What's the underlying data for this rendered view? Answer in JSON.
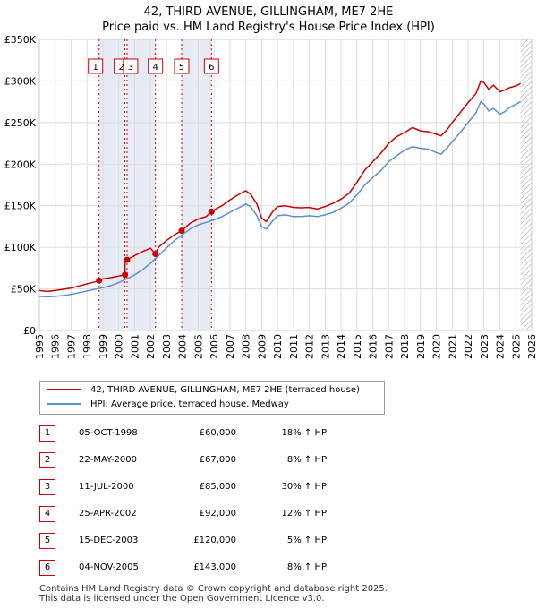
{
  "chart_data": {
    "type": "line",
    "title": "42, THIRD AVENUE, GILLINGHAM, ME7 2HE",
    "subtitle": "Price paid vs. HM Land Registry's House Price Index (HPI)",
    "xlim": [
      1995,
      2026
    ],
    "ylim": [
      0,
      350000
    ],
    "x_ticks": [
      1995,
      1996,
      1997,
      1998,
      1999,
      2000,
      2001,
      2002,
      2003,
      2004,
      2005,
      2006,
      2007,
      2008,
      2009,
      2010,
      2011,
      2012,
      2013,
      2014,
      2015,
      2016,
      2017,
      2018,
      2019,
      2020,
      2021,
      2022,
      2023,
      2024,
      2025,
      2026
    ],
    "y_ticks": [
      {
        "value": 0,
        "label": "£0"
      },
      {
        "value": 50000,
        "label": "£50K"
      },
      {
        "value": 100000,
        "label": "£100K"
      },
      {
        "value": 150000,
        "label": "£150K"
      },
      {
        "value": 200000,
        "label": "£200K"
      },
      {
        "value": 250000,
        "label": "£250K"
      },
      {
        "value": 300000,
        "label": "£300K"
      },
      {
        "value": 350000,
        "label": "£350K"
      }
    ],
    "grid": true,
    "shaded_periods": [
      [
        1998.76,
        2000.39
      ],
      [
        2000.52,
        2002.31
      ],
      [
        2003.96,
        2005.84
      ]
    ],
    "future_hatch_start": 2025.3,
    "series": [
      {
        "name": "42, THIRD AVENUE, GILLINGHAM, ME7 2HE (terraced house)",
        "color": "#cc0000",
        "x": [
          1995.0,
          1995.5,
          1996.0,
          1996.5,
          1997.0,
          1997.5,
          1998.0,
          1998.5,
          1998.76,
          1999.0,
          1999.5,
          2000.0,
          2000.39,
          2000.4,
          2000.52,
          2000.6,
          2001.0,
          2001.5,
          2002.0,
          2002.31,
          2002.5,
          2003.0,
          2003.5,
          2003.96,
          2004.5,
          2005.0,
          2005.5,
          2005.84,
          2006.0,
          2006.5,
          2007.0,
          2007.5,
          2008.0,
          2008.3,
          2008.7,
          2009.0,
          2009.3,
          2009.7,
          2010.0,
          2010.5,
          2011.0,
          2011.5,
          2012.0,
          2012.5,
          2013.0,
          2013.5,
          2014.0,
          2014.5,
          2015.0,
          2015.5,
          2016.0,
          2016.5,
          2017.0,
          2017.5,
          2018.0,
          2018.5,
          2019.0,
          2019.5,
          2020.0,
          2020.3,
          2020.7,
          2021.0,
          2021.5,
          2022.0,
          2022.5,
          2022.8,
          2023.0,
          2023.3,
          2023.6,
          2024.0,
          2024.3,
          2024.6,
          2025.0,
          2025.3
        ],
        "values": [
          48000,
          47000,
          48000,
          49500,
          51000,
          53500,
          56000,
          58500,
          60000,
          62000,
          63500,
          65500,
          67000,
          84000,
          85000,
          86000,
          90000,
          95000,
          99000,
          92000,
          100000,
          108000,
          115000,
          120000,
          129000,
          134000,
          137000,
          143000,
          145000,
          150000,
          157000,
          163000,
          168000,
          164000,
          152000,
          135000,
          131000,
          143000,
          149000,
          150000,
          148000,
          147500,
          148000,
          146000,
          149000,
          153000,
          158000,
          165000,
          178000,
          193000,
          203000,
          213000,
          225000,
          233000,
          238000,
          244000,
          240000,
          239000,
          236000,
          234000,
          242000,
          250000,
          262000,
          274000,
          285000,
          300000,
          298000,
          290000,
          295000,
          287000,
          289000,
          292000,
          294000,
          297000
        ]
      },
      {
        "name": "HPI: Average price, terraced house, Medway",
        "color": "#5b8fd0",
        "x": [
          1995.0,
          1995.5,
          1996.0,
          1996.5,
          1997.0,
          1997.5,
          1998.0,
          1998.5,
          1999.0,
          1999.5,
          2000.0,
          2000.5,
          2001.0,
          2001.5,
          2002.0,
          2002.5,
          2003.0,
          2003.5,
          2004.0,
          2004.5,
          2005.0,
          2005.5,
          2006.0,
          2006.5,
          2007.0,
          2007.5,
          2008.0,
          2008.3,
          2008.7,
          2009.0,
          2009.3,
          2009.7,
          2010.0,
          2010.5,
          2011.0,
          2011.5,
          2012.0,
          2012.5,
          2013.0,
          2013.5,
          2014.0,
          2014.5,
          2015.0,
          2015.5,
          2016.0,
          2016.5,
          2017.0,
          2017.5,
          2018.0,
          2018.5,
          2019.0,
          2019.5,
          2020.0,
          2020.3,
          2020.7,
          2021.0,
          2021.5,
          2022.0,
          2022.5,
          2022.8,
          2023.0,
          2023.3,
          2023.6,
          2024.0,
          2024.3,
          2024.6,
          2025.0,
          2025.3
        ],
        "values": [
          41000,
          40500,
          41000,
          42000,
          43500,
          45500,
          47500,
          49500,
          51500,
          54000,
          57500,
          62000,
          67000,
          73000,
          81000,
          90000,
          99000,
          108000,
          115000,
          122000,
          127000,
          130000,
          133000,
          137000,
          142000,
          147000,
          152000,
          149000,
          138000,
          125000,
          122000,
          132000,
          138000,
          139000,
          137000,
          137000,
          138000,
          137000,
          139000,
          142000,
          147000,
          153000,
          163000,
          175000,
          184000,
          192000,
          203000,
          210000,
          217000,
          221000,
          219000,
          218000,
          214000,
          212000,
          220000,
          227000,
          238000,
          250000,
          262000,
          275000,
          272000,
          264000,
          267000,
          260000,
          263000,
          268000,
          272000,
          275000
        ]
      }
    ],
    "sale_markers": [
      {
        "label": "1",
        "x": 1998.76,
        "value": 60000
      },
      {
        "label": "2",
        "x": 2000.39,
        "value": 67000
      },
      {
        "label": "3",
        "x": 2000.52,
        "value": 85000
      },
      {
        "label": "4",
        "x": 2002.31,
        "value": 92000
      },
      {
        "label": "5",
        "x": 2003.96,
        "value": 120000
      },
      {
        "label": "6",
        "x": 2005.84,
        "value": 143000
      }
    ]
  },
  "legend": {
    "property": "42, THIRD AVENUE, GILLINGHAM, ME7 2HE (terraced house)",
    "hpi": "HPI: Average price, terraced house, Medway"
  },
  "sales": [
    {
      "num": "1",
      "date": "05-OCT-1998",
      "price": "£60,000",
      "hpi": "18% ↑ HPI"
    },
    {
      "num": "2",
      "date": "22-MAY-2000",
      "price": "£67,000",
      "hpi": "8% ↑ HPI"
    },
    {
      "num": "3",
      "date": "11-JUL-2000",
      "price": "£85,000",
      "hpi": "30% ↑ HPI"
    },
    {
      "num": "4",
      "date": "25-APR-2002",
      "price": "£92,000",
      "hpi": "12% ↑ HPI"
    },
    {
      "num": "5",
      "date": "15-DEC-2003",
      "price": "£120,000",
      "hpi": "5% ↑ HPI"
    },
    {
      "num": "6",
      "date": "04-NOV-2005",
      "price": "£143,000",
      "hpi": "8% ↑ HPI"
    }
  ],
  "footer": {
    "line1": "Contains HM Land Registry data © Crown copyright and database right 2025.",
    "line2": "This data is licensed under the Open Government Licence v3.0."
  },
  "colors": {
    "property": "#cc0000",
    "hpi": "#5b8fd0",
    "shade": "#e6ebf5",
    "grid": "#dddddd"
  }
}
